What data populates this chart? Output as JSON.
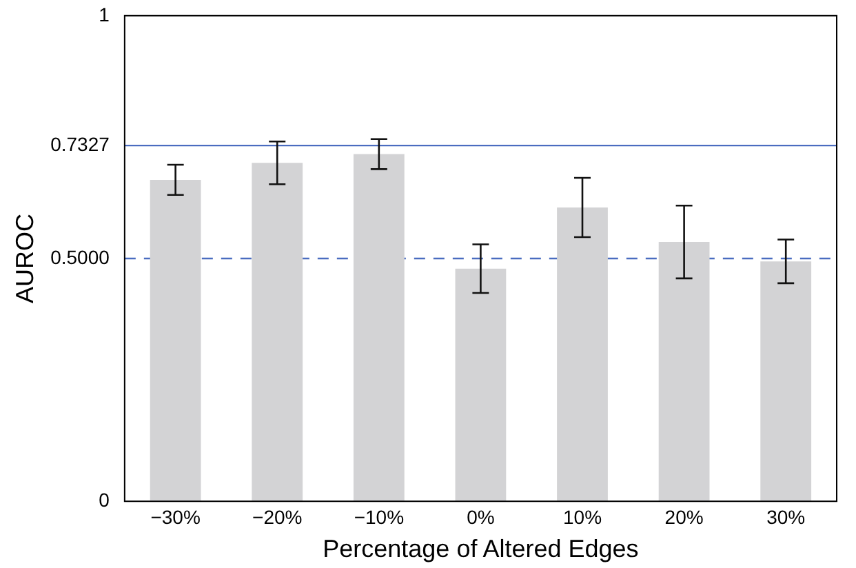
{
  "chart_data": {
    "type": "bar",
    "xlabel": "Percentage of Altered Edges",
    "ylabel": "AUROC",
    "categories": [
      "−30%",
      "−20%",
      "−10%",
      "0%",
      "10%",
      "20%",
      "30%"
    ],
    "values": [
      0.662,
      0.697,
      0.715,
      0.479,
      0.605,
      0.534,
      0.494
    ],
    "errors": [
      0.031,
      0.044,
      0.031,
      0.05,
      0.061,
      0.075,
      0.045
    ],
    "color": "#d3d3d5",
    "ylim": [
      0,
      1
    ],
    "yticks": [
      0,
      {
        "value": 0.5,
        "label": "0.5000"
      },
      {
        "value": 0.7327,
        "label": "0.7327"
      },
      1
    ],
    "ref_lines": [
      {
        "axis": "y",
        "value": 0.7327,
        "color": "#4a6cc0",
        "line_style": "solid"
      },
      {
        "axis": "y",
        "value": 0.5,
        "color": "#4a6cc0",
        "line_style": "dashed"
      }
    ],
    "grid": false,
    "legend": false
  }
}
